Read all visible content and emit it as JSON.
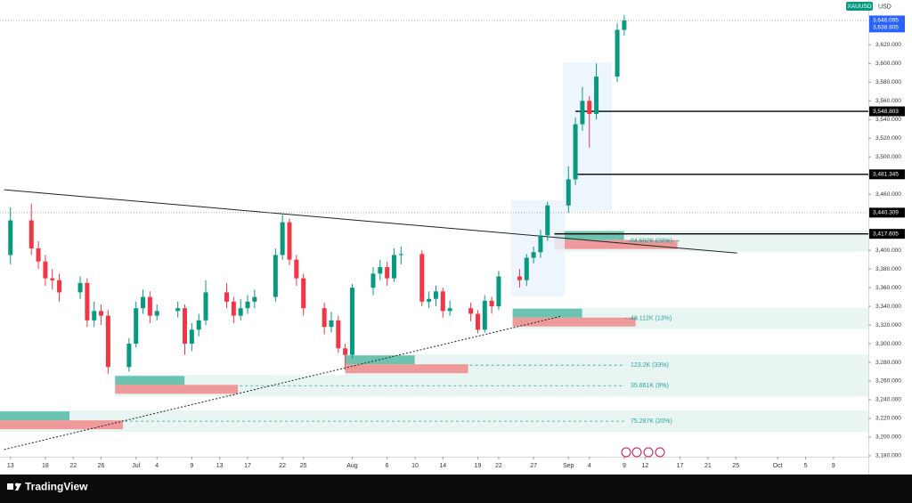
{
  "chart_data": {
    "type": "candlestick",
    "symbol": "XAUUSD",
    "currency": "USD",
    "brand": "TradingView",
    "up_color": "#089981",
    "down_color": "#f23645",
    "x": [
      0,
      3,
      4,
      5,
      6,
      7,
      10,
      11,
      12,
      13,
      14,
      17,
      18,
      19,
      20,
      21,
      24,
      25,
      26,
      27,
      28,
      31,
      32,
      33,
      34,
      35,
      38,
      39,
      40,
      41,
      42,
      45,
      46,
      47,
      48,
      49,
      52,
      53,
      54,
      55,
      56,
      59,
      60,
      61,
      62,
      63,
      66,
      67,
      68,
      69,
      70,
      73,
      74,
      75,
      76,
      77,
      80,
      81,
      82,
      83,
      84,
      87,
      88
    ],
    "open": [
      3395,
      3432,
      3402,
      3388,
      3370,
      3368,
      3355,
      3365,
      3325,
      3335,
      3330,
      3275,
      3300,
      3338,
      3350,
      3330,
      3335,
      3338,
      3300,
      3315,
      3325,
      3355,
      3345,
      3330,
      3338,
      3345,
      3350,
      3395,
      3430,
      3390,
      3370,
      3338,
      3318,
      3325,
      3295,
      3288,
      3360,
      3375,
      3382,
      3370,
      3395,
      3396,
      3345,
      3348,
      3356,
      3335,
      3338,
      3332,
      3315,
      3346,
      3340,
      3372,
      3368,
      3392,
      3398,
      3416,
      3448,
      3476,
      3535,
      3560,
      3546,
      3586,
      3636
    ],
    "high": [
      3446,
      3450,
      3410,
      3395,
      3380,
      3375,
      3372,
      3370,
      3345,
      3342,
      3336,
      3306,
      3345,
      3358,
      3356,
      3342,
      3345,
      3342,
      3322,
      3332,
      3368,
      3365,
      3350,
      3348,
      3352,
      3358,
      3402,
      3438,
      3434,
      3395,
      3375,
      3344,
      3334,
      3330,
      3300,
      3364,
      3382,
      3390,
      3388,
      3402,
      3404,
      3400,
      3356,
      3362,
      3360,
      3346,
      3344,
      3336,
      3352,
      3350,
      3378,
      3380,
      3396,
      3404,
      3422,
      3452,
      3490,
      3542,
      3575,
      3565,
      3600,
      3643,
      3652
    ],
    "low": [
      3385,
      3395,
      3380,
      3362,
      3358,
      3345,
      3348,
      3318,
      3318,
      3320,
      3268,
      3270,
      3296,
      3332,
      3322,
      3325,
      3328,
      3288,
      3292,
      3308,
      3320,
      3338,
      3322,
      3325,
      3332,
      3338,
      3345,
      3390,
      3384,
      3362,
      3330,
      3310,
      3312,
      3290,
      3272,
      3284,
      3352,
      3368,
      3362,
      3366,
      3385,
      3340,
      3338,
      3340,
      3328,
      3330,
      3324,
      3311,
      3312,
      3332,
      3336,
      3360,
      3362,
      3386,
      3392,
      3410,
      3440,
      3470,
      3528,
      3510,
      3540,
      3580,
      3630
    ],
    "close": [
      3432,
      3402,
      3388,
      3370,
      3368,
      3355,
      3365,
      3325,
      3335,
      3330,
      3275,
      3300,
      3338,
      3350,
      3330,
      3335,
      3338,
      3300,
      3315,
      3325,
      3355,
      3345,
      3330,
      3338,
      3345,
      3350,
      3395,
      3430,
      3390,
      3370,
      3338,
      3318,
      3325,
      3295,
      3288,
      3360,
      3375,
      3382,
      3370,
      3395,
      3396,
      3345,
      3348,
      3356,
      3335,
      3338,
      3332,
      3315,
      3346,
      3340,
      3372,
      3368,
      3392,
      3398,
      3416,
      3448,
      3476,
      3535,
      3560,
      3546,
      3586,
      3636,
      3646
    ],
    "xlim": [
      -1.5,
      123
    ],
    "xticks": [
      {
        "value": 0,
        "label": "13"
      },
      {
        "value": 5,
        "label": "18"
      },
      {
        "value": 9,
        "label": "22"
      },
      {
        "value": 13,
        "label": "26"
      },
      {
        "value": 18,
        "label": "Jul"
      },
      {
        "value": 21,
        "label": "4"
      },
      {
        "value": 26,
        "label": "9"
      },
      {
        "value": 30,
        "label": "13"
      },
      {
        "value": 34,
        "label": "17"
      },
      {
        "value": 39,
        "label": "22"
      },
      {
        "value": 42,
        "label": "25"
      },
      {
        "value": 49,
        "label": "Aug"
      },
      {
        "value": 54,
        "label": "6"
      },
      {
        "value": 58,
        "label": "10"
      },
      {
        "value": 62,
        "label": "14"
      },
      {
        "value": 67,
        "label": "19"
      },
      {
        "value": 70,
        "label": "22"
      },
      {
        "value": 75,
        "label": "27"
      },
      {
        "value": 80,
        "label": "Sep"
      },
      {
        "value": 83,
        "label": "4"
      },
      {
        "value": 88,
        "label": "9"
      },
      {
        "value": 91,
        "label": "12"
      },
      {
        "value": 96,
        "label": "17"
      },
      {
        "value": 100,
        "label": "21"
      },
      {
        "value": 104,
        "label": "25"
      },
      {
        "value": 110,
        "label": "Oct"
      },
      {
        "value": 114,
        "label": "5"
      },
      {
        "value": 118,
        "label": "9"
      }
    ],
    "ylim": [
      3179,
      3668
    ],
    "yticks": [
      {
        "value": 3180,
        "label": "3,180.000"
      },
      {
        "value": 3200,
        "label": "3,200.000"
      },
      {
        "value": 3220,
        "label": "3,220.000"
      },
      {
        "value": 3240,
        "label": "3,240.000"
      },
      {
        "value": 3260,
        "label": "3,260.000"
      },
      {
        "value": 3280,
        "label": "3,280.000"
      },
      {
        "value": 3300,
        "label": "3,300.000"
      },
      {
        "value": 3320,
        "label": "3,320.000"
      },
      {
        "value": 3340,
        "label": "3,340.000"
      },
      {
        "value": 3360,
        "label": "3,360.000"
      },
      {
        "value": 3380,
        "label": "3,380.000"
      },
      {
        "value": 3400,
        "label": "3,400.000"
      },
      {
        "value": 3460,
        "label": "3,460.000"
      },
      {
        "value": 3480,
        "label": "3,480.000"
      },
      {
        "value": 3500,
        "label": "3,500.000"
      },
      {
        "value": 3520,
        "label": "3,520.000"
      },
      {
        "value": 3540,
        "label": "3,540.000"
      },
      {
        "value": 3560,
        "label": "3,560.000"
      },
      {
        "value": 3580,
        "label": "3,580.000"
      },
      {
        "value": 3600,
        "label": "3,600.000"
      },
      {
        "value": 3620,
        "label": "3,620.000"
      }
    ],
    "price_lines": [
      {
        "value": 3646.095,
        "label": "3,646.095",
        "start": -1.5,
        "style": "dotted",
        "color": "#2962ff"
      },
      {
        "value": 3638.605,
        "label": "3,638.605",
        "start": 123,
        "style": "none",
        "color": "#2962ff"
      },
      {
        "value": 3548.803,
        "label": "3,548.803",
        "start": 81,
        "style": "solid",
        "color": "#000000"
      },
      {
        "value": 3481.345,
        "label": "3,481.345",
        "start": 81,
        "style": "solid",
        "color": "#000000"
      },
      {
        "value": 3440.309,
        "label": "3,440.309",
        "start": -1.5,
        "style": "dotted",
        "color": "#000000"
      },
      {
        "value": 3417.605,
        "label": "3,417.605",
        "start": 78,
        "style": "solid",
        "color": "#000000"
      }
    ],
    "trendlines": [
      {
        "x": [
          -0.9,
          104.2
        ],
        "y": [
          3464.8,
          3397
        ],
        "style": "solid"
      },
      {
        "x": [
          -0.9,
          79
        ],
        "y": [
          3186.7,
          3329.5
        ],
        "style": "dotted"
      }
    ],
    "zones": [
      {
        "text": "84.502K (23%)",
        "price": 3410,
        "start": 78
      },
      {
        "text": "48.112K (13%)",
        "price": 3327,
        "start": 72
      },
      {
        "text": "123.2K (33%)",
        "price": 3277,
        "start": 48
      },
      {
        "text": "35.661K (9%)",
        "price": 3255,
        "start": 15
      },
      {
        "text": "75.287K (20%)",
        "price": 3217,
        "start": -1.5
      }
    ]
  }
}
